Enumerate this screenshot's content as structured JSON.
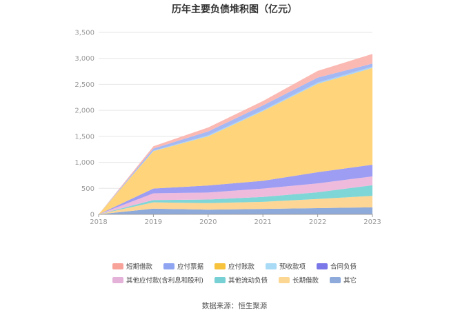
{
  "source": "数据来源：恒生聚源",
  "chart_data": {
    "type": "area",
    "stacked": true,
    "title": "历年主要负债堆积图（亿元）",
    "x": [
      "2018",
      "2019",
      "2020",
      "2021",
      "2022",
      "2023"
    ],
    "ylim": [
      0,
      3500
    ],
    "yticks": [
      "0",
      "500",
      "1,000",
      "1,500",
      "2,000",
      "2,500",
      "3,000",
      "3,500"
    ],
    "grid": true,
    "legend_position": "bottom",
    "series": [
      {
        "name": "其它",
        "color": "#8eaadb",
        "values": [
          0,
          110,
          90,
          105,
          120,
          135
        ]
      },
      {
        "name": "长期借款",
        "color": "#fdd696",
        "values": [
          0,
          120,
          125,
          135,
          175,
          220
        ]
      },
      {
        "name": "其他流动负债",
        "color": "#7fd6d6",
        "values": [
          0,
          45,
          70,
          95,
          130,
          205
        ]
      },
      {
        "name": "其他应付款(含利息和股利)",
        "color": "#eebbdd",
        "values": [
          0,
          130,
          135,
          160,
          170,
          170
        ]
      },
      {
        "name": "合同负债",
        "color": "#9d9df3",
        "values": [
          0,
          90,
          135,
          150,
          215,
          225
        ]
      },
      {
        "name": "应付账款",
        "color": "#ffd47a",
        "values": [
          0,
          720,
          945,
          1340,
          1700,
          1860
        ]
      },
      {
        "name": "预收款项",
        "color": "#aad4f5",
        "values": [
          0,
          10,
          20,
          20,
          25,
          25
        ]
      },
      {
        "name": "应付票据",
        "color": "#a4b8f4",
        "values": [
          0,
          40,
          75,
          90,
          95,
          60
        ]
      },
      {
        "name": "短期借款",
        "color": "#fbb9b3",
        "values": [
          0,
          45,
          75,
          85,
          130,
          185
        ]
      }
    ],
    "legend_rows": [
      [
        "短期借款",
        "应付票据",
        "应付账款",
        "预收款项",
        "合同负债"
      ],
      [
        "其他应付款(含利息和股利)",
        "其他流动负债",
        "长期借款",
        "其它"
      ]
    ],
    "legend_colors": {
      "短期借款": "#f8a39a",
      "应付票据": "#8fa5f2",
      "应付账款": "#f7c33c",
      "预收款项": "#a9dbf7",
      "合同负债": "#7a77e8",
      "其他应付款(含利息和股利)": "#e4b2d9",
      "其他流动负债": "#77d0d3",
      "长期借款": "#fcd794",
      "其它": "#8eaadb"
    }
  }
}
